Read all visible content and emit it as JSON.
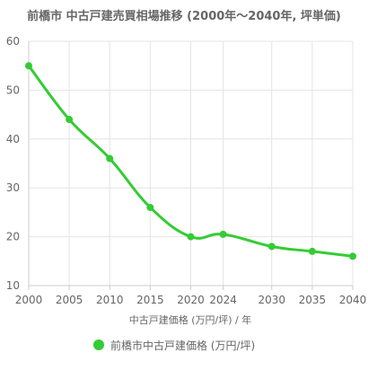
{
  "chart_data": {
    "type": "line",
    "title": "前橋市 中古戸建売買相場推移 (2000年〜2040年, 坪単価)",
    "xlabel": "中古戸建価格 (万円/坪) / 年",
    "ylabel": "",
    "x": [
      2000,
      2005,
      2010,
      2015,
      2020,
      2024,
      2030,
      2035,
      2040
    ],
    "x_tick_labels": [
      "2000",
      "2005",
      "2010",
      "2015",
      "2020",
      "2024",
      "2030",
      "2035",
      "2040"
    ],
    "ylim": [
      10,
      60
    ],
    "y_ticks": [
      10,
      20,
      30,
      40,
      50,
      60
    ],
    "grid": true,
    "legend_position": "bottom",
    "series": [
      {
        "name": "前橋市中古戸建価格 (万円/坪)",
        "color": "#33cc33",
        "values": [
          55,
          44,
          36,
          26,
          20,
          20.5,
          18,
          17,
          16
        ]
      }
    ]
  }
}
